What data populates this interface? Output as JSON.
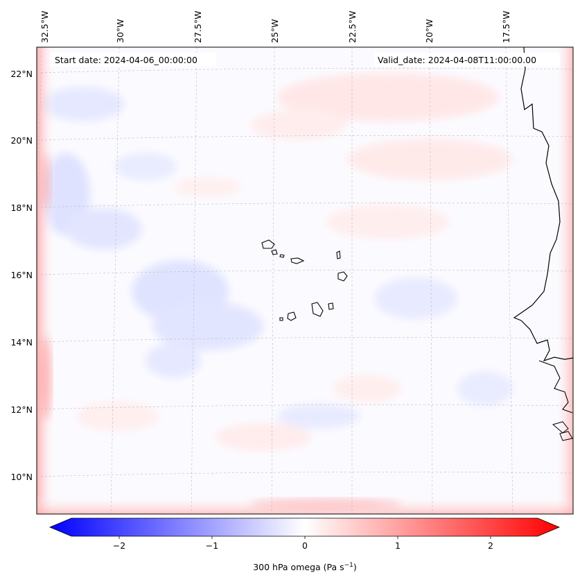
{
  "map": {
    "start_label": "Start date: 2024-04-06_00:00:00",
    "valid_label": "Valid_date: 2024-04-08T11:00:00.00",
    "lon_labels": [
      "32.5°W",
      "30°W",
      "27.5°W",
      "25°W",
      "22.5°W",
      "20°W",
      "17.5°W"
    ],
    "lat_labels": [
      "22°N",
      "20°N",
      "18°N",
      "16°N",
      "14°N",
      "12°N",
      "10°N"
    ]
  },
  "colorbar": {
    "ticks": [
      "−2",
      "−1",
      "0",
      "1",
      "2"
    ],
    "label_prefix": "300 hPa omega (Pa s",
    "label_exp": "−1",
    "label_suffix": ")"
  },
  "colors": {
    "negative": "#0000ff",
    "neutral": "#ffffff",
    "positive": "#ff0000",
    "coast": "#000000",
    "grid": "#b0b0b0"
  }
}
